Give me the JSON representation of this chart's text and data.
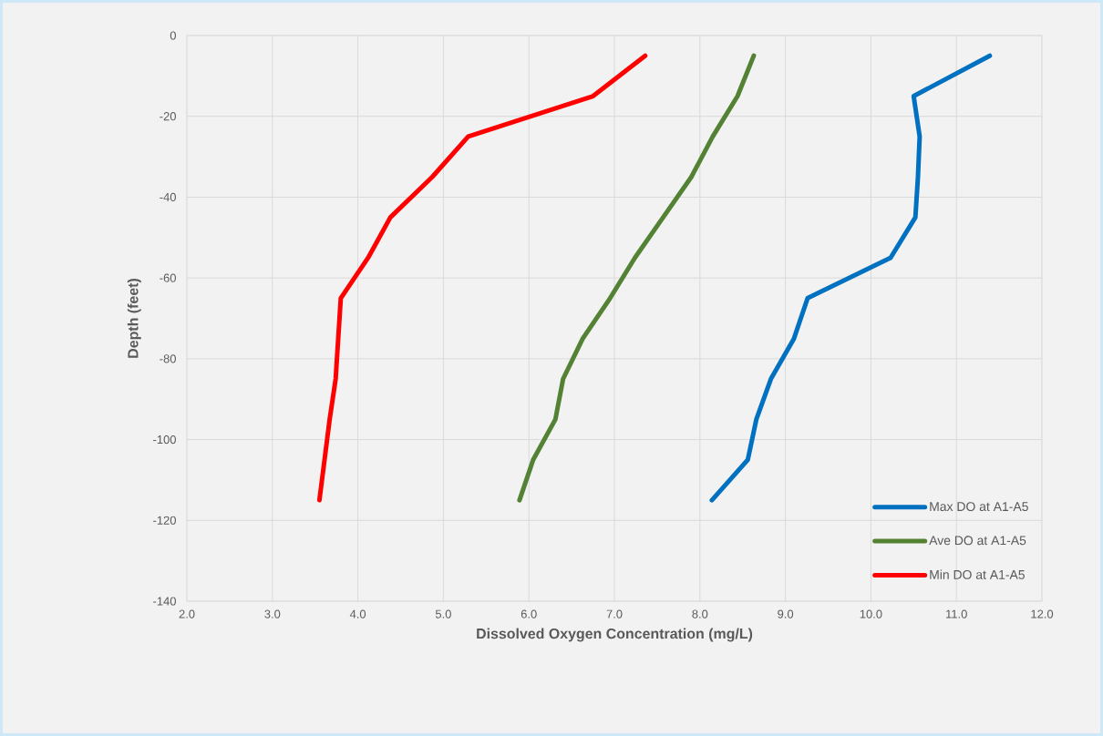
{
  "chart_data": {
    "type": "line",
    "xlabel": "Dissolved Oxygen Concentration (mg/L)",
    "ylabel": "Depth (feet)",
    "xlim": [
      2,
      12
    ],
    "ylim": [
      -140,
      0
    ],
    "xticks": [
      {
        "value": 2,
        "label": "2.0"
      },
      {
        "value": 3,
        "label": "3.0"
      },
      {
        "value": 4,
        "label": "4.0"
      },
      {
        "value": 5,
        "label": "5.0"
      },
      {
        "value": 6,
        "label": "6.0"
      },
      {
        "value": 7,
        "label": "7.0"
      },
      {
        "value": 8,
        "label": "8.0"
      },
      {
        "value": 9,
        "label": "9.0"
      },
      {
        "value": 10,
        "label": "10.0"
      },
      {
        "value": 11,
        "label": "11.0"
      },
      {
        "value": 12,
        "label": "12.0"
      }
    ],
    "yticks": [
      0,
      -20,
      -40,
      -60,
      -80,
      -100,
      -120,
      -140
    ],
    "grid": true,
    "legend": "bottom right",
    "marker": "none",
    "line_style": "solid",
    "series": [
      {
        "name": "Max DO at A1-A5",
        "color": "#0070c0",
        "x": [
          11.39,
          10.5,
          10.57,
          10.55,
          10.52,
          10.23,
          9.26,
          9.1,
          8.83,
          8.66,
          8.56,
          8.14
        ],
        "values": [
          -5,
          -15,
          -25,
          -35,
          -45,
          -55,
          -65,
          -75,
          -85,
          -95,
          -105,
          -115
        ]
      },
      {
        "name": "Ave DO at A1-A5",
        "color": "#548235",
        "x": [
          8.63,
          8.44,
          8.15,
          7.9,
          7.57,
          7.24,
          6.95,
          6.63,
          6.4,
          6.31,
          6.05,
          5.89
        ],
        "values": [
          -5,
          -15,
          -25,
          -35,
          -45,
          -55,
          -65,
          -75,
          -85,
          -95,
          -105,
          -115
        ]
      },
      {
        "name": "Min DO at A1-A5",
        "color": "#ff0000",
        "x": [
          7.36,
          6.75,
          5.29,
          4.87,
          4.38,
          4.12,
          3.8,
          3.77,
          3.74,
          3.67,
          3.61,
          3.55
        ],
        "values": [
          -5,
          -15,
          -25,
          -35,
          -45,
          -55,
          -65,
          -75,
          -85,
          -95,
          -105,
          -115
        ]
      }
    ]
  }
}
